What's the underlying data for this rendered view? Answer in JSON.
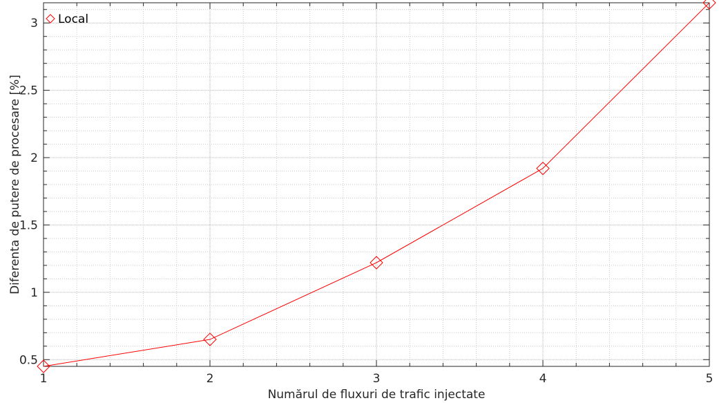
{
  "chart_data": {
    "type": "line",
    "title": "",
    "xlabel": "Numărul de fluxuri de trafic injectate",
    "ylabel": "Diferenta de putere de procesare [%]",
    "x": [
      1,
      2,
      3,
      4,
      5
    ],
    "xlim": [
      1,
      5
    ],
    "ylim": [
      0.45,
      3.15
    ],
    "xticks": [
      1,
      2,
      3,
      4,
      5
    ],
    "xtick_labels": [
      "1",
      "2",
      "3",
      "4",
      "5"
    ],
    "yticks": [
      0.5,
      1,
      1.5,
      2,
      2.5,
      3
    ],
    "ytick_labels": [
      "0.5",
      "1",
      "1.5",
      "2",
      "2.5",
      "3"
    ],
    "grid": true,
    "minor_grid": true,
    "legend_position": "top-left",
    "series": [
      {
        "name": "Local",
        "values": [
          0.45,
          0.65,
          1.22,
          1.92,
          3.15
        ],
        "color": "#ff0000",
        "marker": "diamond"
      }
    ]
  }
}
